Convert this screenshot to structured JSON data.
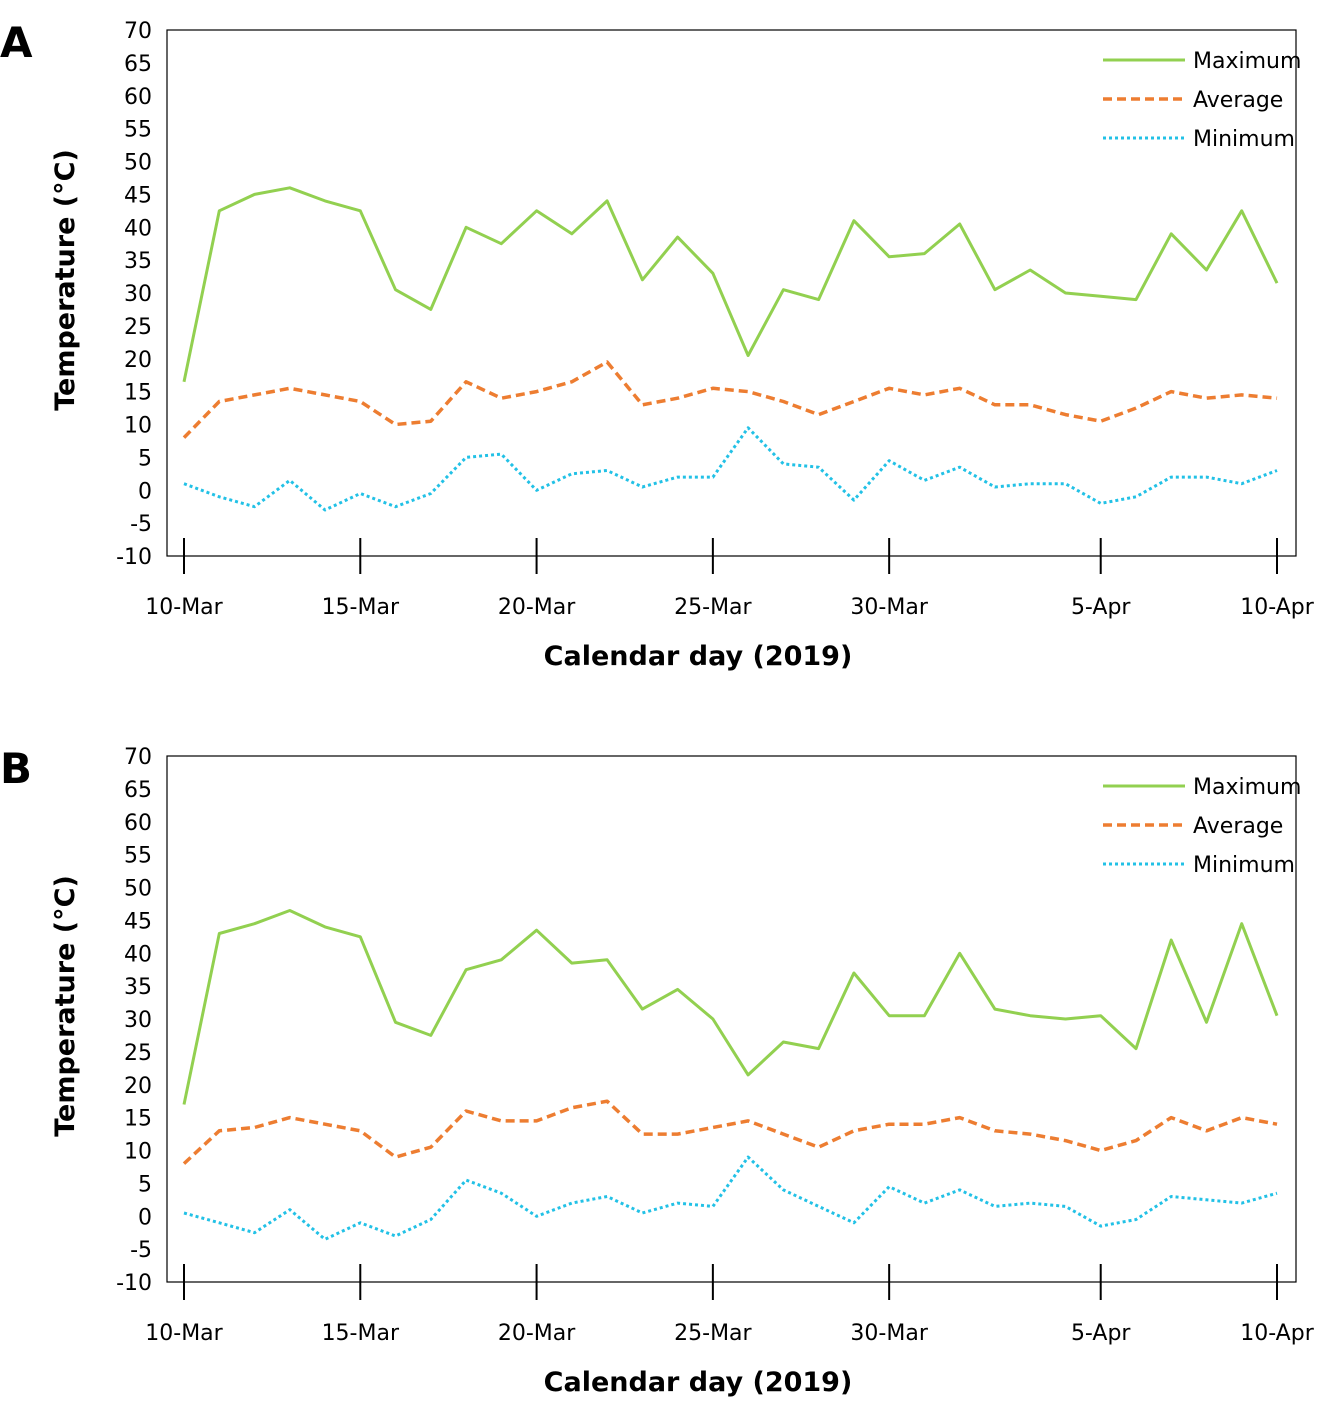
{
  "colors": {
    "maximum": "#92d050",
    "average": "#ed7d31",
    "minimum": "#22c1e6"
  },
  "chart_data": [
    {
      "panel_label": "A",
      "type": "line",
      "xlabel": "Calendar day (2019)",
      "ylabel": "Temperature (°C)",
      "ylim": [
        -10,
        70
      ],
      "yticks": [
        70,
        65,
        60,
        55,
        50,
        45,
        40,
        35,
        30,
        25,
        20,
        15,
        10,
        5,
        0,
        -5,
        -10
      ],
      "x_days": [
        0,
        1,
        2,
        3,
        4,
        5,
        6,
        7,
        8,
        9,
        10,
        11,
        12,
        13,
        14,
        15,
        16,
        17,
        18,
        19,
        20,
        21,
        22,
        23,
        24,
        25,
        26,
        27,
        28,
        29,
        30,
        31
      ],
      "x_tick_labels": [
        "10-Mar",
        "15-Mar",
        "20-Mar",
        "25-Mar",
        "30-Mar",
        "5-Apr",
        "10-Apr"
      ],
      "x_tick_days": [
        0,
        5,
        10,
        15,
        20,
        26,
        31
      ],
      "legend": [
        "Maximum",
        "Average",
        "Minimum"
      ],
      "legend_position": "top-right",
      "series": [
        {
          "name": "Maximum",
          "values": [
            16.5,
            42.5,
            45,
            46,
            44,
            42.5,
            30.5,
            27.5,
            40,
            37.5,
            42.5,
            39,
            44,
            32,
            38.5,
            33,
            20.5,
            30.5,
            29,
            41,
            35.5,
            36,
            40.5,
            30.5,
            33.5,
            30,
            29.5,
            29,
            39,
            33.5,
            42.5,
            31.5
          ]
        },
        {
          "name": "Average",
          "values": [
            8,
            13.5,
            14.5,
            15.5,
            14.5,
            13.5,
            10,
            10.5,
            16.5,
            14,
            15,
            16.5,
            19.5,
            13,
            14,
            15.5,
            15,
            13.5,
            11.5,
            13.5,
            15.5,
            14.5,
            15.5,
            13,
            13,
            11.5,
            10.5,
            12.5,
            15,
            14,
            14.5,
            14
          ]
        },
        {
          "name": "Minimum",
          "values": [
            1,
            -1,
            -2.5,
            1.5,
            -3,
            -0.5,
            -2.5,
            -0.5,
            5,
            5.5,
            0,
            2.5,
            3,
            0.5,
            2,
            2,
            9.5,
            4,
            3.5,
            -1.5,
            4.5,
            1.5,
            3.5,
            0.5,
            1,
            1,
            -2,
            -1,
            2,
            2,
            1,
            3
          ]
        }
      ]
    },
    {
      "panel_label": "B",
      "type": "line",
      "xlabel": "Calendar day (2019)",
      "ylabel": "Temperature (°C)",
      "ylim": [
        -10,
        70
      ],
      "yticks": [
        70,
        65,
        60,
        55,
        50,
        45,
        40,
        35,
        30,
        25,
        20,
        15,
        10,
        5,
        0,
        -5,
        -10
      ],
      "x_days": [
        0,
        1,
        2,
        3,
        4,
        5,
        6,
        7,
        8,
        9,
        10,
        11,
        12,
        13,
        14,
        15,
        16,
        17,
        18,
        19,
        20,
        21,
        22,
        23,
        24,
        25,
        26,
        27,
        28,
        29,
        30,
        31
      ],
      "x_tick_labels": [
        "10-Mar",
        "15-Mar",
        "20-Mar",
        "25-Mar",
        "30-Mar",
        "5-Apr",
        "10-Apr"
      ],
      "x_tick_days": [
        0,
        5,
        10,
        15,
        20,
        26,
        31
      ],
      "legend": [
        "Maximum",
        "Average",
        "Minimum"
      ],
      "legend_position": "top-right",
      "series": [
        {
          "name": "Maximum",
          "values": [
            17,
            43,
            44.5,
            46.5,
            44,
            42.5,
            29.5,
            27.5,
            37.5,
            39,
            43.5,
            38.5,
            39,
            31.5,
            34.5,
            30,
            21.5,
            26.5,
            25.5,
            37,
            30.5,
            30.5,
            40,
            31.5,
            30.5,
            30,
            30.5,
            25.5,
            42,
            29.5,
            44.5,
            30.5
          ]
        },
        {
          "name": "Average",
          "values": [
            8,
            13,
            13.5,
            15,
            14,
            13,
            9,
            10.5,
            16,
            14.5,
            14.5,
            16.5,
            17.5,
            12.5,
            12.5,
            13.5,
            14.5,
            12.5,
            10.5,
            13,
            14,
            14,
            15,
            13,
            12.5,
            11.5,
            10,
            11.5,
            15,
            13,
            15,
            14
          ]
        },
        {
          "name": "Minimum",
          "values": [
            0.5,
            -1,
            -2.5,
            1,
            -3.5,
            -1,
            -3,
            -0.5,
            5.5,
            3.5,
            0,
            2,
            3,
            0.5,
            2,
            1.5,
            9,
            4,
            1.5,
            -1,
            4.5,
            2,
            4,
            1.5,
            2,
            1.5,
            -1.5,
            -0.5,
            3,
            2.5,
            2,
            3.5
          ]
        }
      ]
    }
  ]
}
